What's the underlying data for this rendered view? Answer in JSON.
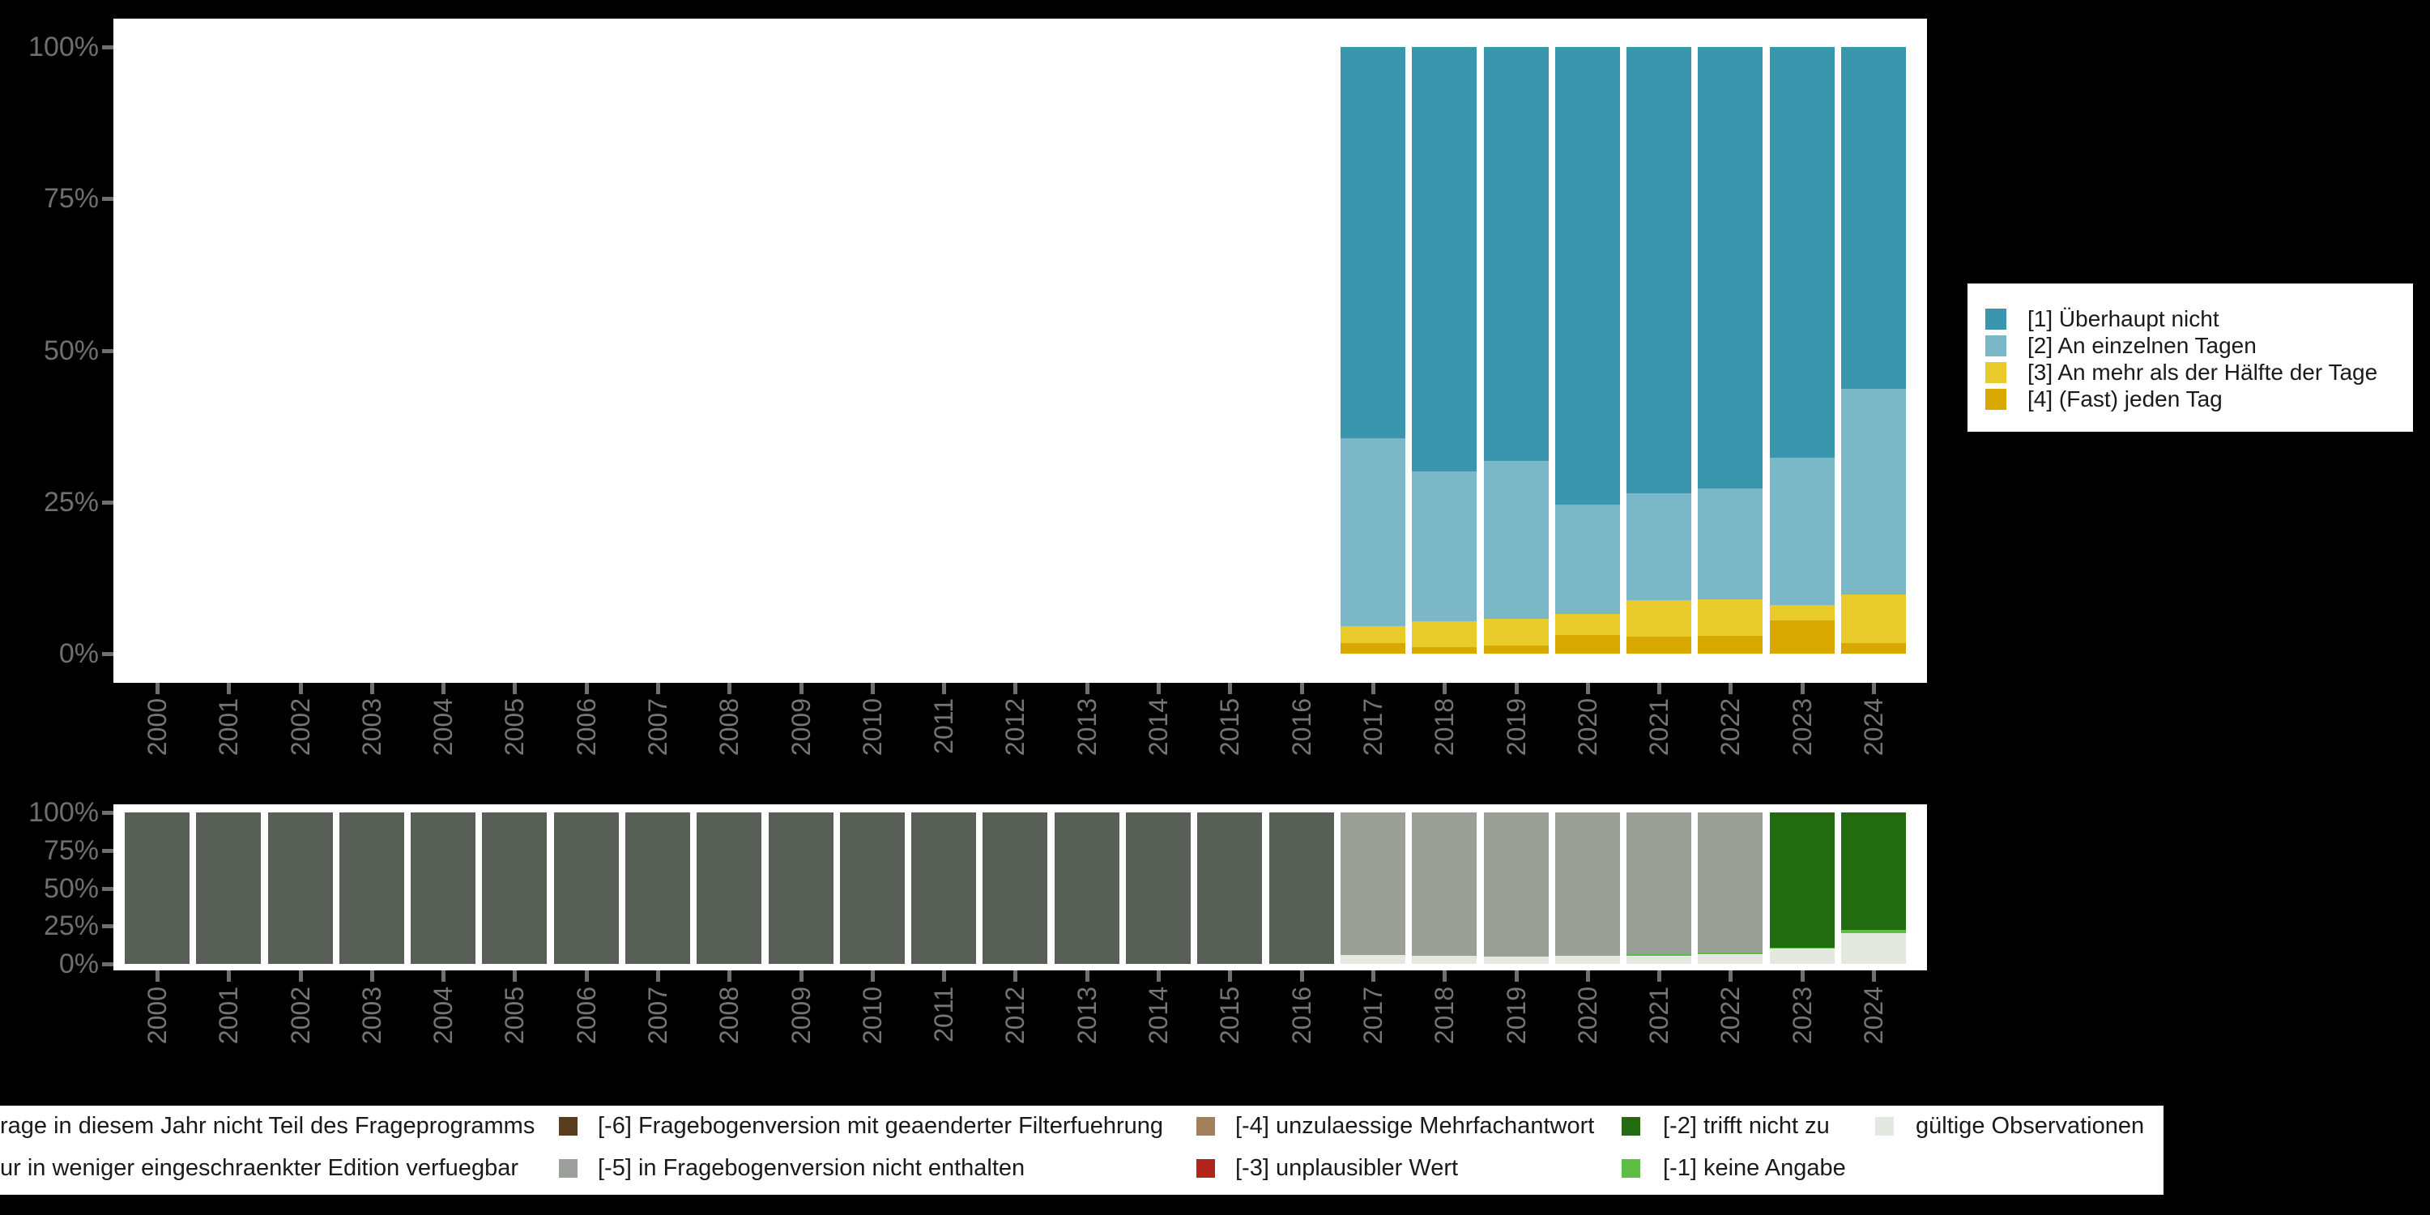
{
  "accent_colors": {
    "background": "#000000",
    "panel": "#ffffff",
    "axis_text": "#6f6f6f"
  },
  "chart_data": [
    {
      "type": "bar",
      "stacked": true,
      "title": "",
      "xlabel": "",
      "ylabel": "",
      "ylim": [
        0,
        100
      ],
      "grid": false,
      "y_tick_labels": [
        "100%",
        "75%",
        "50%",
        "25%",
        "0%"
      ],
      "categories": [
        2000,
        2001,
        2002,
        2003,
        2004,
        2005,
        2006,
        2007,
        2008,
        2009,
        2010,
        2011,
        2012,
        2013,
        2014,
        2015,
        2016,
        2017,
        2018,
        2019,
        2020,
        2021,
        2022,
        2023,
        2024
      ],
      "series": [
        {
          "name": "[4] (Fast) jeden Tag",
          "color": "#d9a800",
          "values": [
            0,
            0,
            0,
            0,
            0,
            0,
            0,
            0,
            0,
            0,
            0,
            0,
            0,
            0,
            0,
            0,
            0,
            1.8,
            1.1,
            1.3,
            3.1,
            2.8,
            2.9,
            5.5,
            1.7
          ]
        },
        {
          "name": "[3] An mehr als der Hälfte der Tage",
          "color": "#e8ca2b",
          "values": [
            0,
            0,
            0,
            0,
            0,
            0,
            0,
            0,
            0,
            0,
            0,
            0,
            0,
            0,
            0,
            0,
            0,
            2.8,
            4.2,
            4.5,
            3.4,
            6.0,
            6.1,
            2.5,
            8.1
          ]
        },
        {
          "name": "[2] An einzelnen Tagen",
          "color": "#7ab8c8",
          "values": [
            0,
            0,
            0,
            0,
            0,
            0,
            0,
            0,
            0,
            0,
            0,
            0,
            0,
            0,
            0,
            0,
            0,
            30.9,
            24.8,
            26.0,
            18.1,
            17.7,
            18.3,
            24.3,
            33.9
          ]
        },
        {
          "name": "[1] Überhaupt nicht",
          "color": "#3a96ad",
          "values": [
            0,
            0,
            0,
            0,
            0,
            0,
            0,
            0,
            0,
            0,
            0,
            0,
            0,
            0,
            0,
            0,
            0,
            64.5,
            69.9,
            68.2,
            75.4,
            73.5,
            72.7,
            67.7,
            56.3
          ]
        }
      ],
      "legend": {
        "position": "right",
        "items": [
          {
            "label": "[1] Überhaupt nicht",
            "color": "#3a96ad"
          },
          {
            "label": "[2] An einzelnen Tagen",
            "color": "#7ab8c8"
          },
          {
            "label": "[3] An mehr als der Hälfte der Tage",
            "color": "#e8ca2b"
          },
          {
            "label": "[4] (Fast) jeden Tag",
            "color": "#d9a800"
          }
        ]
      }
    },
    {
      "type": "bar",
      "stacked": true,
      "title": "",
      "xlabel": "",
      "ylabel": "",
      "ylim": [
        0,
        100
      ],
      "grid": false,
      "y_tick_labels": [
        "100%",
        "75%",
        "50%",
        "25%",
        "0%"
      ],
      "categories": [
        2000,
        2001,
        2002,
        2003,
        2004,
        2005,
        2006,
        2007,
        2008,
        2009,
        2010,
        2011,
        2012,
        2013,
        2014,
        2015,
        2016,
        2017,
        2018,
        2019,
        2020,
        2021,
        2022,
        2023,
        2024
      ],
      "series": [
        {
          "name": "gültige Observationen",
          "color": "#e3e8e0",
          "values": [
            0,
            0,
            0,
            0,
            0,
            0,
            0,
            0,
            0,
            0,
            0,
            0,
            0,
            0,
            0,
            0,
            0,
            5.9,
            5.3,
            4.8,
            5.3,
            5.3,
            6.4,
            10,
            20.4
          ]
        },
        {
          "name": "[-1] keine Angabe",
          "color": "#5cbf44",
          "values": [
            0,
            0,
            0,
            0,
            0,
            0,
            0,
            0,
            0,
            0,
            0,
            0,
            0,
            0,
            0,
            0,
            0,
            0,
            0,
            0,
            0,
            0.9,
            0.9,
            0.5,
            1.8
          ]
        },
        {
          "name": "[-5] in Fragebogenversion nicht enthalten",
          "color": "#999e96",
          "values": [
            0,
            0,
            0,
            0,
            0,
            0,
            0,
            0,
            0,
            0,
            0,
            0,
            0,
            0,
            0,
            0,
            0,
            94.1,
            94.7,
            95.2,
            94.7,
            93.8,
            92.7,
            0,
            0
          ]
        },
        {
          "name": "[-2] trifft nicht zu",
          "color": "#226b10",
          "values": [
            0,
            0,
            0,
            0,
            0,
            0,
            0,
            0,
            0,
            0,
            0,
            0,
            0,
            0,
            0,
            0,
            0,
            0,
            0,
            0,
            0,
            0,
            0,
            89.5,
            77.8
          ]
        },
        {
          "name": "rage in diesem Jahr nicht Teil des Frageprogramms",
          "color": "#575f56",
          "values": [
            100,
            100,
            100,
            100,
            100,
            100,
            100,
            100,
            100,
            100,
            100,
            100,
            100,
            100,
            100,
            100,
            100,
            0,
            0,
            0,
            0,
            0,
            0,
            0,
            0
          ]
        }
      ]
    }
  ],
  "bottom_legend": {
    "rows": [
      [
        {
          "label": "rage in diesem Jahr nicht Teil des Frageprogramms",
          "color": null
        },
        {
          "label": "[-6] Fragebogenversion mit geaenderter Filterfuehrung",
          "color": "#5a3c1e"
        },
        {
          "label": "[-4] unzulaessige Mehrfachantwort",
          "color": "#a28059"
        },
        {
          "label": "[-2] trifft nicht zu",
          "color": "#226b10"
        },
        {
          "label": "gültige Observationen",
          "color": "#e3e8e0"
        }
      ],
      [
        {
          "label": "ur in weniger eingeschraenkter Edition verfuegbar",
          "color": null
        },
        {
          "label": "[-5] in Fragebogenversion nicht enthalten",
          "color": "#9ba09a"
        },
        {
          "label": "[-3] unplausibler Wert",
          "color": "#b2251c"
        },
        {
          "label": "[-1] keine Angabe",
          "color": "#5cbf44"
        }
      ]
    ]
  }
}
